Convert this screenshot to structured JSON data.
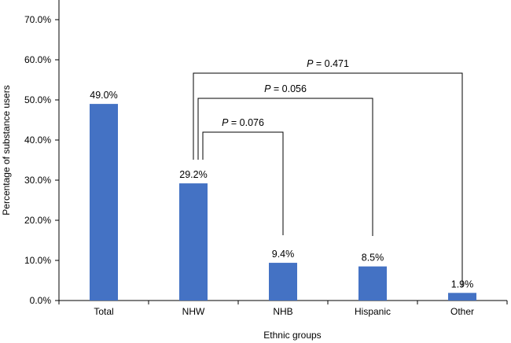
{
  "chart_data": {
    "type": "bar",
    "xlabel": "Ethnic groups",
    "ylabel": "Percentage of substance users",
    "categories": [
      "Total",
      "NHW",
      "NHB",
      "Hispanic",
      "Other"
    ],
    "values": [
      49.0,
      29.2,
      9.4,
      8.5,
      1.9
    ],
    "value_labels": [
      "49.0%",
      "29.2%",
      "9.4%",
      "8.5%",
      "1.9%"
    ],
    "ylim": [
      0,
      70
    ],
    "yticks": [
      0,
      10,
      20,
      30,
      40,
      50,
      60,
      70
    ],
    "ytick_labels": [
      "0.0%",
      "10.0%",
      "20.0%",
      "30.0%",
      "40.0%",
      "50.0%",
      "60.0%",
      "70.0%"
    ],
    "grid": false,
    "bar_color": "#4472C4",
    "comparisons": [
      {
        "from": "NHW",
        "to": "NHB",
        "italic": "P",
        "text": " = 0.076"
      },
      {
        "from": "NHW",
        "to": "Hispanic",
        "italic": "P",
        "text": " = 0.056"
      },
      {
        "from": "NHW",
        "to": "Other",
        "italic": "P",
        "text": " = 0.471"
      }
    ]
  }
}
